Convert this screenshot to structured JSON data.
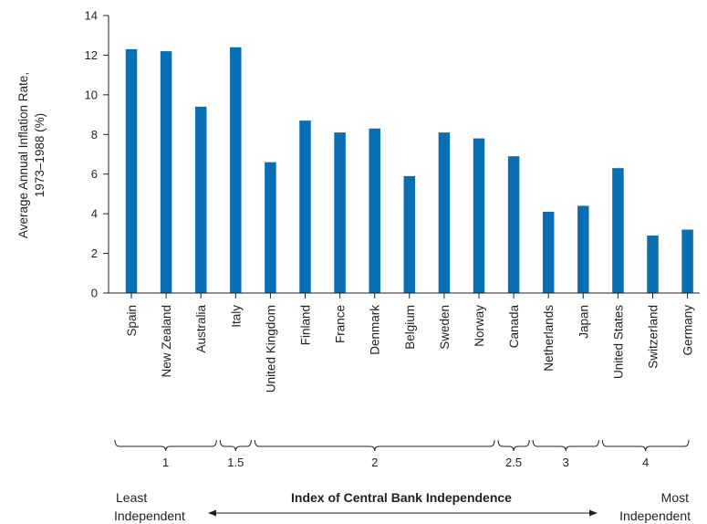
{
  "chart_data": {
    "type": "bar",
    "ylabel_line1": "Average Annual Inflation Rate,",
    "ylabel_line2": "1973–1988 (%)",
    "ylim": [
      0,
      14
    ],
    "yticks": [
      0,
      2,
      4,
      6,
      8,
      10,
      12,
      14
    ],
    "bar_color": "#0a6eb4",
    "categories": [
      "Spain",
      "New Zealand",
      "Australia",
      "Italy",
      "United Kingdom",
      "Finland",
      "France",
      "Denmark",
      "Belgium",
      "Sweden",
      "Norway",
      "Canada",
      "Netherlands",
      "Japan",
      "United States",
      "Switzerland",
      "Germany"
    ],
    "values": [
      12.3,
      12.2,
      9.4,
      12.4,
      6.6,
      8.7,
      8.1,
      8.3,
      5.9,
      8.1,
      7.8,
      6.9,
      4.1,
      4.4,
      6.3,
      2.9,
      3.2
    ],
    "index_groups": [
      {
        "label": "1",
        "from": 0,
        "to": 2
      },
      {
        "label": "1.5",
        "from": 3,
        "to": 3
      },
      {
        "label": "2",
        "from": 4,
        "to": 10
      },
      {
        "label": "2.5",
        "from": 11,
        "to": 11
      },
      {
        "label": "3",
        "from": 12,
        "to": 13
      },
      {
        "label": "4",
        "from": 14,
        "to": 16
      }
    ],
    "index_title": "Index of Central Bank Independence",
    "left_end_line1": "Least",
    "left_end_line2": "Independent",
    "right_end_line1": "Most",
    "right_end_line2": "Independent"
  }
}
